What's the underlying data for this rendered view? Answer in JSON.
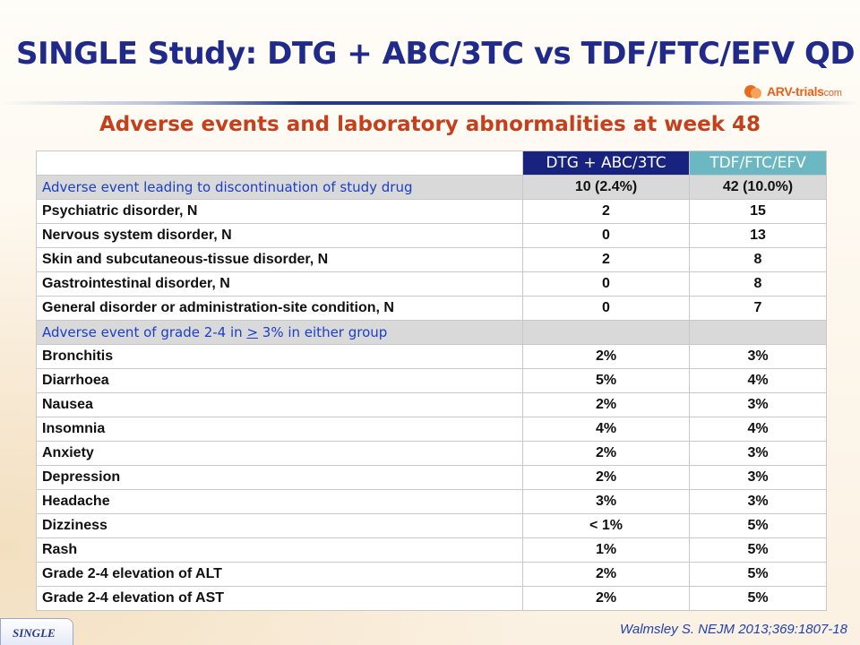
{
  "header": {
    "title": "SINGLE Study: DTG + ABC/3TC vs TDF/FTC/EFV QD",
    "logo_text": "ARV-trials",
    "logo_suffix": "com",
    "subtitle": "Adverse events and laboratory abnormalities at week 48"
  },
  "table": {
    "columns": [
      "",
      "DTG + ABC/3TC",
      "TDF/FTC/EFV"
    ],
    "sections": [
      {
        "label": "Adverse event leading to discontinuation of study drug",
        "col2": "10 (2.4%)",
        "col3": "42 (10.0%)",
        "rows": [
          {
            "label": "Psychiatric disorder, N",
            "col2": "2",
            "col3": "15"
          },
          {
            "label": "Nervous system disorder, N",
            "col2": "0",
            "col3": "13"
          },
          {
            "label": "Skin and subcutaneous-tissue disorder, N",
            "col2": "2",
            "col3": "8"
          },
          {
            "label": "Gastrointestinal disorder, N",
            "col2": "0",
            "col3": "8"
          },
          {
            "label": "General disorder or administration-site condition, N",
            "col2": "0",
            "col3": "7"
          }
        ]
      },
      {
        "label_pre": "Adverse event of grade 2-4 in ",
        "label_symbol": ">",
        "label_post": " 3% in either group",
        "col2": "",
        "col3": "",
        "rows": [
          {
            "label": "Bronchitis",
            "col2": "2%",
            "col3": "3%"
          },
          {
            "label": "Diarrhoea",
            "col2": "5%",
            "col3": "4%"
          },
          {
            "label": "Nausea",
            "col2": "2%",
            "col3": "3%"
          },
          {
            "label": "Insomnia",
            "col2": "4%",
            "col3": "4%"
          },
          {
            "label": "Anxiety",
            "col2": "2%",
            "col3": "3%"
          },
          {
            "label": "Depression",
            "col2": "2%",
            "col3": "3%"
          },
          {
            "label": "Headache",
            "col2": "3%",
            "col3": "3%"
          },
          {
            "label": "Dizziness",
            "col2": "< 1%",
            "col3": "5%"
          },
          {
            "label": "Rash",
            "col2": "1%",
            "col3": "5%"
          }
        ]
      }
    ],
    "footer_rows": [
      {
        "label": "Grade 2-4 elevation of ALT",
        "col2": "2%",
        "col3": "5%"
      },
      {
        "label": "Grade 2-4 elevation of AST",
        "col2": "2%",
        "col3": "5%"
      }
    ]
  },
  "footer": {
    "tab_label": "SINGLE",
    "reference": "Walmsley S. NEJM 2013;369:1807-18"
  },
  "colors": {
    "title": "#1f2a8a",
    "subtitle": "#c4401c",
    "col_dtg": "#17237e",
    "col_tdf": "#6cb8c2",
    "section_text": "#1a3ec8",
    "section_bg": "#d9d9d9"
  }
}
